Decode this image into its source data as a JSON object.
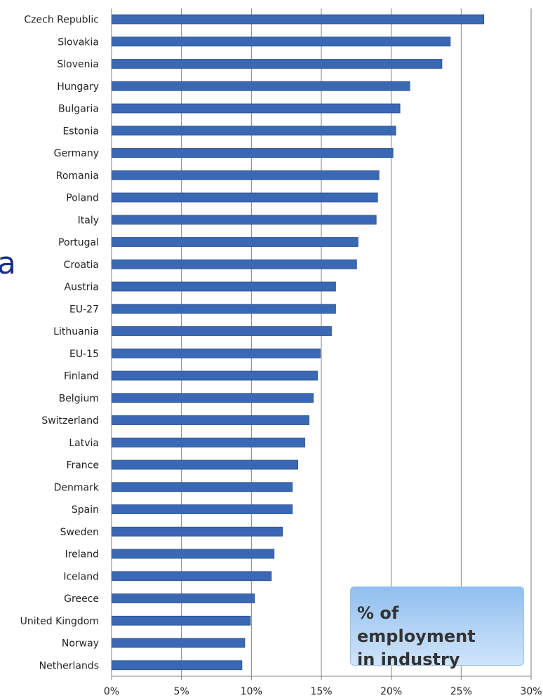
{
  "edge_fragment": "a",
  "legend_text": "% of employment\nin industry",
  "colors": {
    "bar": "#3a68b4",
    "bar_edge": "#2b4f8e",
    "grid": "#7f7f7f"
  },
  "chart_data": {
    "type": "bar",
    "orientation": "horizontal",
    "categories": [
      "Czech Republic",
      "Slovakia",
      "Slovenia",
      "Hungary",
      "Bulgaria",
      "Estonia",
      "Germany",
      "Romania",
      "Poland",
      "Italy",
      "Portugal",
      "Croatia",
      "Austria",
      "EU-27",
      "Lithuania",
      "EU-15",
      "Finland",
      "Belgium",
      "Switzerland",
      "Latvia",
      "France",
      "Denmark",
      "Spain",
      "Sweden",
      "Ireland",
      "Iceland",
      "Greece",
      "United Kingdom",
      "Norway",
      "Netherlands"
    ],
    "values": [
      26.6,
      24.2,
      23.6,
      21.3,
      20.6,
      20.3,
      20.1,
      19.1,
      19.0,
      18.9,
      17.6,
      17.5,
      16.0,
      16.0,
      15.7,
      14.9,
      14.7,
      14.4,
      14.1,
      13.8,
      13.3,
      12.9,
      12.9,
      12.2,
      11.6,
      11.4,
      10.2,
      9.9,
      9.5,
      9.3
    ],
    "xlim": [
      0,
      30
    ],
    "x_ticks": [
      "0%",
      "5%",
      "10%",
      "15%",
      "20%",
      "25%",
      "30%"
    ],
    "grid": true,
    "title": "",
    "xlabel": "",
    "ylabel": ""
  }
}
